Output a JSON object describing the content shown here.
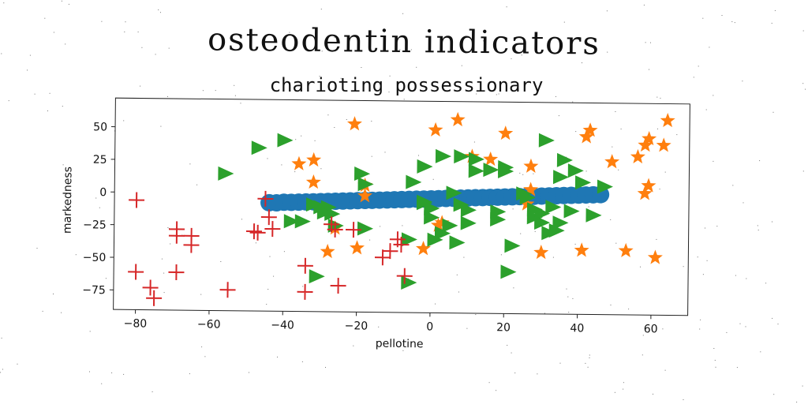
{
  "header": {
    "title": "osteodentin indicators",
    "subtitle": "charioting possessionary"
  },
  "chart_data": {
    "type": "scatter",
    "title": "charioting possessionary",
    "xlabel": "pellotine",
    "ylabel": "markedness",
    "xlim": [
      -86,
      70
    ],
    "ylim": [
      -90,
      72
    ],
    "xticks": [
      -80,
      -60,
      -40,
      -20,
      0,
      20,
      40,
      60
    ],
    "yticks": [
      -75,
      -50,
      -25,
      0,
      25,
      50
    ],
    "grid": false,
    "legend": "none",
    "colors": {
      "blue": "#1f77b4",
      "orange": "#ff7f0e",
      "green": "#2ca02c",
      "red": "#d62728"
    },
    "series": [
      {
        "marker": "circle",
        "color": "#1f77b4",
        "points": [
          [
            -44,
            -7
          ],
          [
            -42,
            -7
          ],
          [
            -40,
            -6.5
          ],
          [
            -38,
            -6.5
          ],
          [
            -36,
            -6.3
          ],
          [
            -34,
            -6.1
          ],
          [
            -32,
            -5.9
          ],
          [
            -30,
            -5.7
          ],
          [
            -28,
            -5.5
          ],
          [
            -26,
            -5.3
          ],
          [
            -24,
            -5.1
          ],
          [
            -22,
            -4.9
          ],
          [
            -20,
            -4.7
          ],
          [
            -18,
            -4.5
          ],
          [
            -16,
            -4.3
          ],
          [
            -14,
            -4.1
          ],
          [
            -12,
            -3.9
          ],
          [
            -10,
            -3.7
          ],
          [
            -8,
            -3.5
          ],
          [
            -6,
            -3.3
          ],
          [
            -4,
            -3.1
          ],
          [
            -2,
            -2.9
          ],
          [
            0,
            -2.7
          ],
          [
            2,
            -2.5
          ],
          [
            4,
            -2.3
          ],
          [
            6,
            -2.1
          ],
          [
            8,
            -1.9
          ],
          [
            10,
            -1.7
          ],
          [
            12,
            -1.5
          ],
          [
            14,
            -1.3
          ],
          [
            16,
            -1.1
          ],
          [
            18,
            -0.9
          ],
          [
            20,
            -0.7
          ],
          [
            22,
            -0.5
          ],
          [
            24,
            -0.3
          ],
          [
            26,
            -0.1
          ],
          [
            28,
            0.1
          ],
          [
            30,
            0.3
          ],
          [
            32,
            0.5
          ],
          [
            34,
            0.7
          ],
          [
            36,
            0.9
          ],
          [
            38,
            1.1
          ],
          [
            40,
            1.3
          ],
          [
            42,
            1.5
          ],
          [
            44,
            1.7
          ],
          [
            46,
            1.9
          ]
        ]
      },
      {
        "marker": "star",
        "color": "#ff7f0e",
        "points": [
          [
            -21,
            54
          ],
          [
            -18,
            -1
          ],
          [
            -18,
            7
          ],
          [
            -36,
            23
          ],
          [
            -32,
            26
          ],
          [
            -32,
            9
          ],
          [
            -26,
            -26
          ],
          [
            -28,
            -44
          ],
          [
            -20,
            -41
          ],
          [
            -2,
            -41
          ],
          [
            2,
            -23
          ],
          [
            3,
            -21
          ],
          [
            1,
            50
          ],
          [
            7,
            58
          ],
          [
            11,
            30
          ],
          [
            16,
            28
          ],
          [
            20,
            48
          ],
          [
            27,
            23
          ],
          [
            27,
            5
          ],
          [
            26,
            -6
          ],
          [
            30,
            -43
          ],
          [
            41,
            -41
          ],
          [
            42,
            46
          ],
          [
            43,
            51
          ],
          [
            49,
            27
          ],
          [
            53,
            -41
          ],
          [
            56,
            31
          ],
          [
            58,
            40
          ],
          [
            59,
            45
          ],
          [
            58,
            3
          ],
          [
            59,
            9
          ],
          [
            61,
            -46
          ],
          [
            63,
            40
          ],
          [
            64,
            59
          ]
        ]
      },
      {
        "marker": "triangle-right",
        "color": "#2ca02c",
        "points": [
          [
            -56,
            15
          ],
          [
            -47,
            35
          ],
          [
            -40,
            41
          ],
          [
            -38,
            -21
          ],
          [
            -35,
            -21
          ],
          [
            -32,
            -8
          ],
          [
            -30,
            -10
          ],
          [
            -28,
            -10
          ],
          [
            -27,
            -15
          ],
          [
            -29,
            -14
          ],
          [
            -31,
            -63
          ],
          [
            -26,
            -24
          ],
          [
            -18,
            -26
          ],
          [
            -19,
            16
          ],
          [
            -18,
            8
          ],
          [
            -6,
            -34
          ],
          [
            -6,
            -67
          ],
          [
            -5,
            10
          ],
          [
            -2,
            22
          ],
          [
            -2,
            -5
          ],
          [
            -2,
            -6
          ],
          [
            0,
            -10
          ],
          [
            0,
            -17
          ],
          [
            1,
            -34
          ],
          [
            3,
            -29
          ],
          [
            3,
            30
          ],
          [
            5,
            -23
          ],
          [
            6,
            2
          ],
          [
            7,
            -36
          ],
          [
            8,
            -7
          ],
          [
            8,
            30
          ],
          [
            10,
            -11
          ],
          [
            10,
            -21
          ],
          [
            12,
            28
          ],
          [
            12,
            19
          ],
          [
            16,
            20
          ],
          [
            18,
            -12
          ],
          [
            18,
            -18
          ],
          [
            20,
            22
          ],
          [
            20,
            19
          ],
          [
            21,
            -58
          ],
          [
            22,
            -38
          ],
          [
            25,
            2
          ],
          [
            26,
            -1
          ],
          [
            28,
            -10
          ],
          [
            28,
            -16
          ],
          [
            30,
            -13
          ],
          [
            30,
            -20
          ],
          [
            31,
            43
          ],
          [
            32,
            -28
          ],
          [
            33,
            -8
          ],
          [
            34,
            -26
          ],
          [
            35,
            -20
          ],
          [
            35,
            15
          ],
          [
            36,
            28
          ],
          [
            38,
            -11
          ],
          [
            39,
            20
          ],
          [
            41,
            11
          ],
          [
            44,
            -14
          ],
          [
            47,
            8
          ]
        ]
      },
      {
        "marker": "plus",
        "color": "#d62728",
        "points": [
          [
            -80,
            -6
          ],
          [
            -80,
            -61
          ],
          [
            -76,
            -73
          ],
          [
            -75,
            -81
          ],
          [
            -69,
            -28
          ],
          [
            -69,
            -33
          ],
          [
            -69,
            -61
          ],
          [
            -65,
            -33
          ],
          [
            -65,
            -40
          ],
          [
            -55,
            -74
          ],
          [
            -48,
            -29
          ],
          [
            -47,
            -30
          ],
          [
            -45,
            -4
          ],
          [
            -44,
            -18
          ],
          [
            -43,
            -27
          ],
          [
            -34,
            -55
          ],
          [
            -34,
            -75
          ],
          [
            -27,
            -23
          ],
          [
            -26,
            -27
          ],
          [
            -25,
            -70
          ],
          [
            -21,
            -27
          ],
          [
            -13,
            -48
          ],
          [
            -11,
            -43
          ],
          [
            -9,
            -34
          ],
          [
            -8,
            -38
          ],
          [
            -7,
            -62
          ]
        ]
      }
    ]
  }
}
